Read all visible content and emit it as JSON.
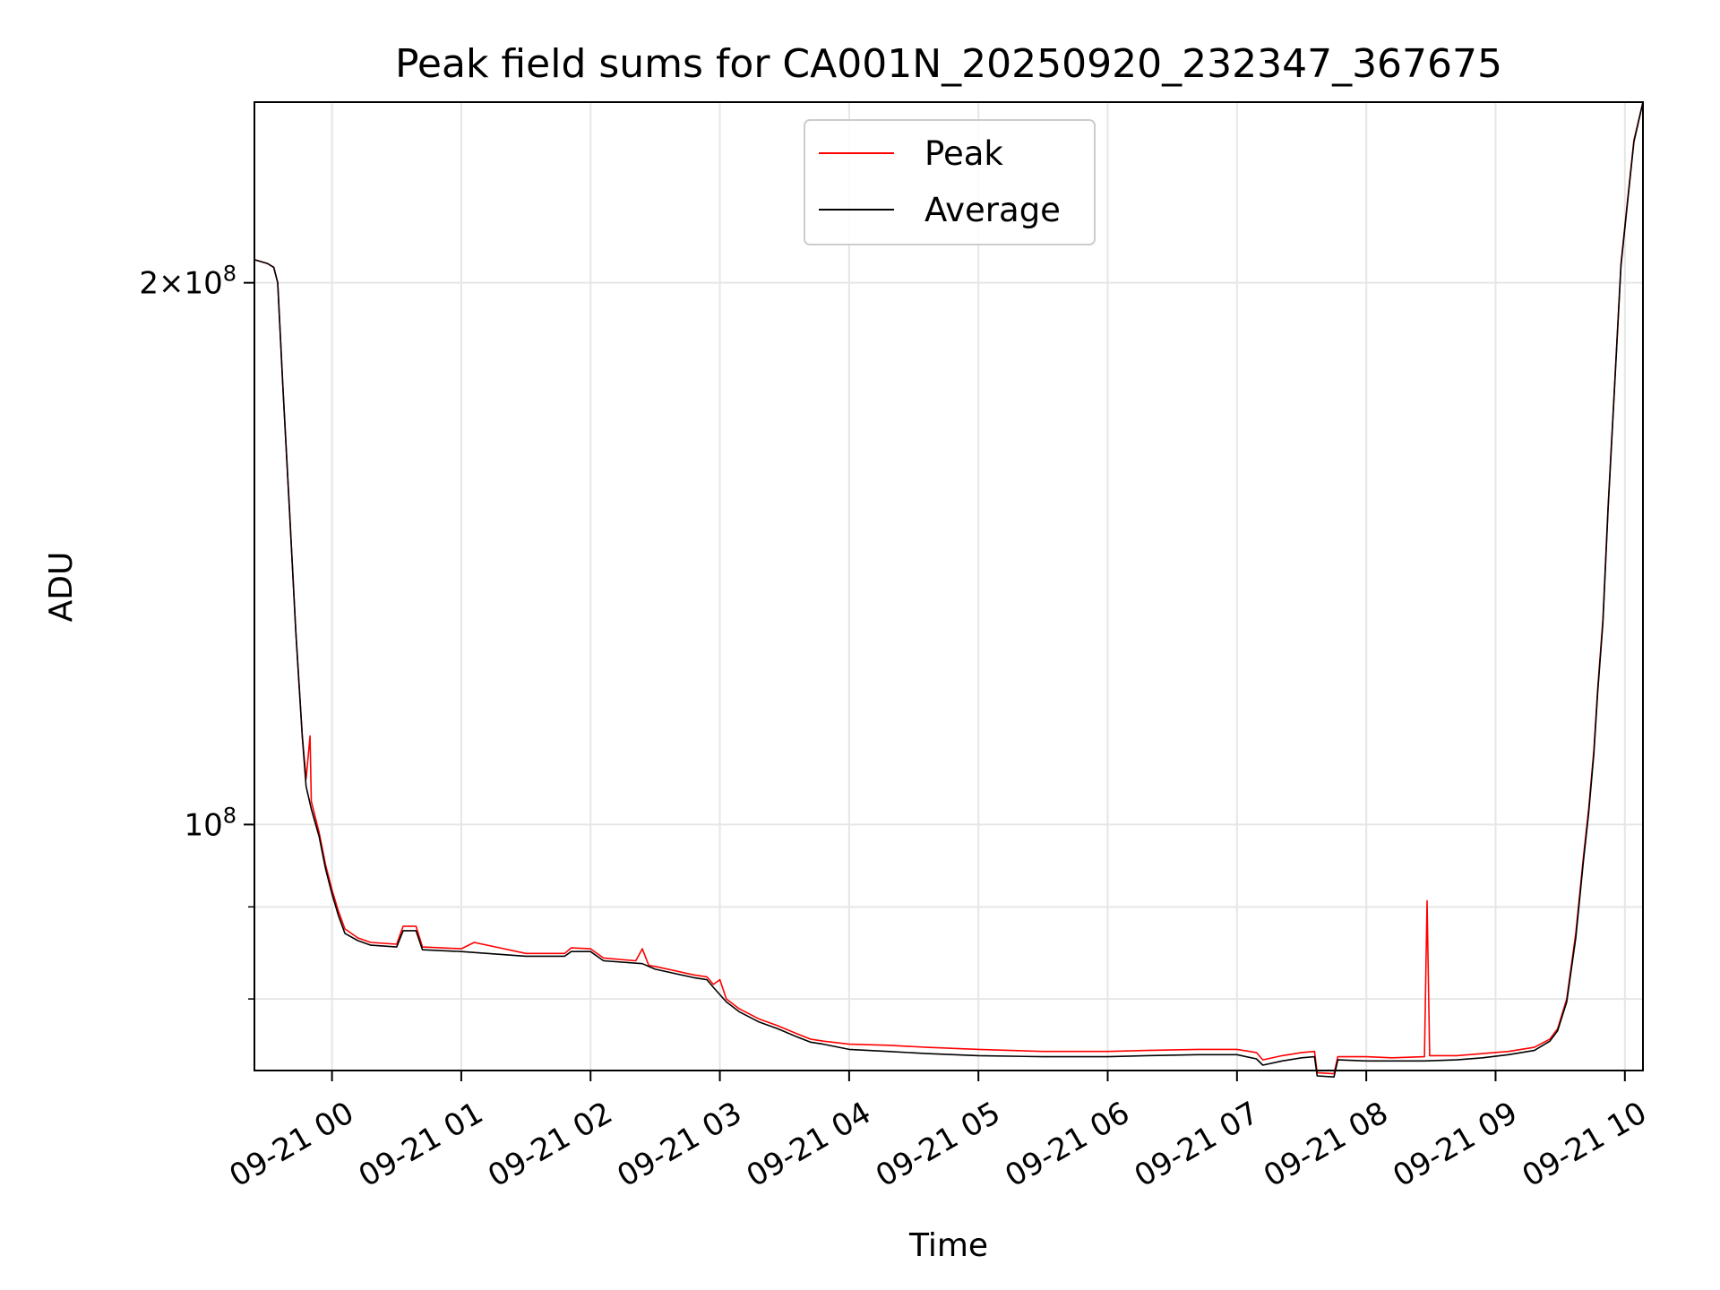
{
  "chart_data": {
    "type": "line",
    "title": "Peak field sums for CA001N_20250920_232347_367675",
    "xlabel": "Time",
    "ylabel": "ADU",
    "yscale": "log",
    "grid": true,
    "legend_position": "top-center",
    "x_unit": "hours since 09-21 00:00",
    "xlim": [
      -0.6,
      10.14
    ],
    "ylim": [
      73000000,
      252000000
    ],
    "x_ticks": [
      {
        "value": 0,
        "label": "09-21 00"
      },
      {
        "value": 1,
        "label": "09-21 01"
      },
      {
        "value": 2,
        "label": "09-21 02"
      },
      {
        "value": 3,
        "label": "09-21 03"
      },
      {
        "value": 4,
        "label": "09-21 04"
      },
      {
        "value": 5,
        "label": "09-21 05"
      },
      {
        "value": 6,
        "label": "09-21 06"
      },
      {
        "value": 7,
        "label": "09-21 07"
      },
      {
        "value": 8,
        "label": "09-21 08"
      },
      {
        "value": 9,
        "label": "09-21 09"
      },
      {
        "value": 10,
        "label": "09-21 10"
      }
    ],
    "y_major_ticks": [
      {
        "value": 100000000,
        "base": "10",
        "exp": "8",
        "prefix": ""
      },
      {
        "value": 200000000,
        "base": "10",
        "exp": "8",
        "prefix": "2×"
      }
    ],
    "y_minor_ticks": [
      80000000,
      90000000
    ],
    "series": [
      {
        "name": "Peak",
        "color": "#ff0000",
        "points": [
          [
            -0.6,
            206000000
          ],
          [
            -0.5,
            205000000
          ],
          [
            -0.45,
            204000000
          ],
          [
            -0.42,
            200000000
          ],
          [
            -0.38,
            175000000
          ],
          [
            -0.33,
            150000000
          ],
          [
            -0.28,
            128000000
          ],
          [
            -0.23,
            112000000
          ],
          [
            -0.2,
            106000000
          ],
          [
            -0.17,
            112000000
          ],
          [
            -0.16,
            103000000
          ],
          [
            -0.1,
            99000000
          ],
          [
            -0.05,
            95000000
          ],
          [
            0.0,
            92000000
          ],
          [
            0.05,
            89500000
          ],
          [
            0.1,
            87500000
          ],
          [
            0.2,
            86500000
          ],
          [
            0.3,
            86000000
          ],
          [
            0.5,
            85800000
          ],
          [
            0.55,
            87800000
          ],
          [
            0.65,
            87800000
          ],
          [
            0.7,
            85500000
          ],
          [
            1.0,
            85300000
          ],
          [
            1.1,
            86000000
          ],
          [
            1.5,
            84800000
          ],
          [
            1.8,
            84800000
          ],
          [
            1.85,
            85400000
          ],
          [
            2.0,
            85300000
          ],
          [
            2.1,
            84300000
          ],
          [
            2.35,
            84000000
          ],
          [
            2.4,
            85300000
          ],
          [
            2.45,
            83500000
          ],
          [
            2.5,
            83400000
          ],
          [
            2.8,
            82500000
          ],
          [
            2.9,
            82300000
          ],
          [
            2.95,
            81500000
          ],
          [
            3.0,
            82000000
          ],
          [
            3.05,
            80000000
          ],
          [
            3.15,
            79000000
          ],
          [
            3.3,
            78000000
          ],
          [
            3.45,
            77300000
          ],
          [
            3.6,
            76500000
          ],
          [
            3.7,
            76000000
          ],
          [
            3.8,
            75800000
          ],
          [
            4.0,
            75500000
          ],
          [
            4.3,
            75400000
          ],
          [
            4.6,
            75200000
          ],
          [
            5.0,
            75000000
          ],
          [
            5.5,
            74800000
          ],
          [
            6.0,
            74800000
          ],
          [
            6.3,
            74900000
          ],
          [
            6.7,
            75000000
          ],
          [
            7.0,
            75000000
          ],
          [
            7.15,
            74700000
          ],
          [
            7.2,
            74000000
          ],
          [
            7.35,
            74400000
          ],
          [
            7.5,
            74700000
          ],
          [
            7.6,
            74800000
          ],
          [
            7.62,
            72800000
          ],
          [
            7.75,
            72700000
          ],
          [
            7.78,
            74300000
          ],
          [
            8.0,
            74300000
          ],
          [
            8.2,
            74200000
          ],
          [
            8.45,
            74300000
          ],
          [
            8.47,
            90700000
          ],
          [
            8.49,
            74400000
          ],
          [
            8.7,
            74400000
          ],
          [
            8.9,
            74600000
          ],
          [
            9.1,
            74800000
          ],
          [
            9.3,
            75200000
          ],
          [
            9.42,
            76000000
          ],
          [
            9.48,
            77000000
          ],
          [
            9.55,
            80000000
          ],
          [
            9.62,
            87000000
          ],
          [
            9.68,
            96000000
          ],
          [
            9.72,
            102000000
          ],
          [
            9.76,
            110000000
          ],
          [
            9.79,
            119000000
          ],
          [
            9.83,
            130000000
          ],
          [
            9.87,
            150000000
          ],
          [
            9.92,
            175000000
          ],
          [
            9.97,
            205000000
          ],
          [
            10.02,
            222000000
          ],
          [
            10.07,
            240000000
          ],
          [
            10.14,
            252000000
          ]
        ]
      },
      {
        "name": "Average",
        "color": "#000000",
        "points": [
          [
            -0.6,
            206000000
          ],
          [
            -0.5,
            205000000
          ],
          [
            -0.45,
            204000000
          ],
          [
            -0.42,
            200000000
          ],
          [
            -0.38,
            175000000
          ],
          [
            -0.33,
            150000000
          ],
          [
            -0.28,
            128000000
          ],
          [
            -0.23,
            112000000
          ],
          [
            -0.2,
            105000000
          ],
          [
            -0.16,
            102000000
          ],
          [
            -0.1,
            98500000
          ],
          [
            -0.05,
            94500000
          ],
          [
            0.0,
            91500000
          ],
          [
            0.05,
            89000000
          ],
          [
            0.1,
            87000000
          ],
          [
            0.2,
            86200000
          ],
          [
            0.3,
            85700000
          ],
          [
            0.5,
            85500000
          ],
          [
            0.55,
            87300000
          ],
          [
            0.65,
            87300000
          ],
          [
            0.7,
            85200000
          ],
          [
            1.0,
            85000000
          ],
          [
            1.5,
            84500000
          ],
          [
            1.8,
            84500000
          ],
          [
            1.85,
            85000000
          ],
          [
            2.0,
            85000000
          ],
          [
            2.1,
            84000000
          ],
          [
            2.4,
            83700000
          ],
          [
            2.5,
            83100000
          ],
          [
            2.8,
            82200000
          ],
          [
            2.9,
            82000000
          ],
          [
            2.95,
            81200000
          ],
          [
            3.05,
            79700000
          ],
          [
            3.15,
            78700000
          ],
          [
            3.3,
            77700000
          ],
          [
            3.45,
            77000000
          ],
          [
            3.6,
            76200000
          ],
          [
            3.7,
            75700000
          ],
          [
            3.8,
            75500000
          ],
          [
            4.0,
            75000000
          ],
          [
            4.3,
            74800000
          ],
          [
            4.6,
            74600000
          ],
          [
            5.0,
            74400000
          ],
          [
            5.5,
            74300000
          ],
          [
            6.0,
            74300000
          ],
          [
            6.3,
            74400000
          ],
          [
            6.7,
            74500000
          ],
          [
            7.0,
            74500000
          ],
          [
            7.15,
            74100000
          ],
          [
            7.2,
            73500000
          ],
          [
            7.35,
            73900000
          ],
          [
            7.5,
            74200000
          ],
          [
            7.6,
            74300000
          ],
          [
            7.62,
            72500000
          ],
          [
            7.75,
            72400000
          ],
          [
            7.78,
            74000000
          ],
          [
            8.0,
            73900000
          ],
          [
            8.45,
            73900000
          ],
          [
            8.7,
            74000000
          ],
          [
            8.9,
            74200000
          ],
          [
            9.1,
            74500000
          ],
          [
            9.3,
            74900000
          ],
          [
            9.42,
            75800000
          ],
          [
            9.48,
            76800000
          ],
          [
            9.55,
            79700000
          ],
          [
            9.62,
            86500000
          ],
          [
            9.68,
            95500000
          ],
          [
            9.72,
            101500000
          ],
          [
            9.76,
            109500000
          ],
          [
            9.79,
            118500000
          ],
          [
            9.83,
            129500000
          ],
          [
            9.87,
            149500000
          ],
          [
            9.92,
            174500000
          ],
          [
            9.97,
            204500000
          ],
          [
            10.02,
            221500000
          ],
          [
            10.07,
            239500000
          ],
          [
            10.14,
            252000000
          ]
        ]
      }
    ]
  }
}
